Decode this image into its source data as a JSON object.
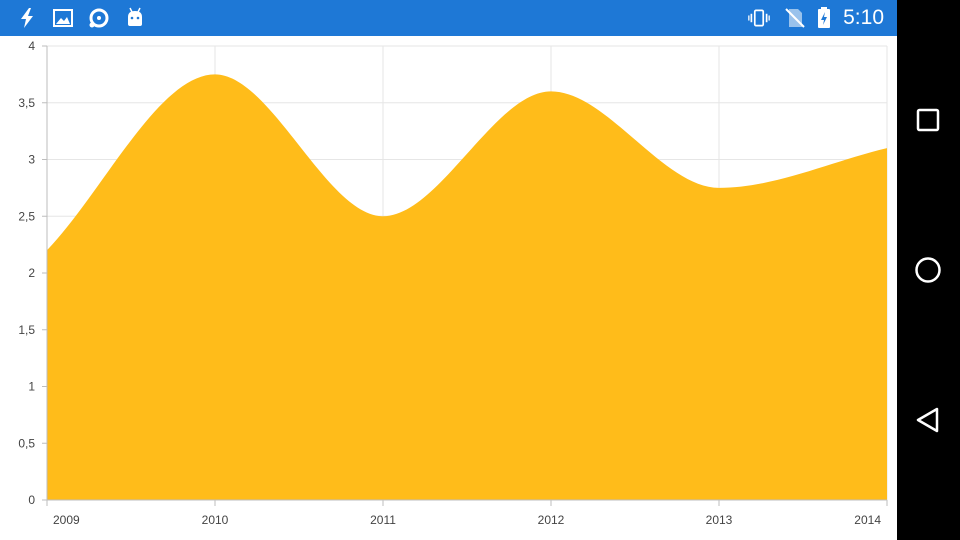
{
  "status_bar": {
    "time": "5:10",
    "left_icons": [
      "flash-icon",
      "image-icon",
      "sync-disc-icon",
      "android-icon"
    ],
    "right_icons": [
      "vibrate-icon",
      "no-sim-icon",
      "battery-charging-icon"
    ],
    "background": "#1e78d6"
  },
  "nav_bar": {
    "buttons": [
      "recents-button",
      "home-button",
      "back-button"
    ]
  },
  "chart_data": {
    "type": "area",
    "categories": [
      "2009",
      "2010",
      "2011",
      "2012",
      "2013",
      "2014"
    ],
    "series": [
      {
        "values": [
          2.2,
          3.75,
          2.5,
          3.6,
          2.75,
          3.1
        ],
        "color": "#ffbc1a"
      }
    ],
    "y_ticks": [
      "0",
      "0,5",
      "1",
      "1,5",
      "2",
      "2,5",
      "3",
      "3,5",
      "4"
    ],
    "ylim": [
      0,
      4
    ],
    "grid": true,
    "smooth": true,
    "title": "",
    "xlabel": "",
    "ylabel": ""
  }
}
